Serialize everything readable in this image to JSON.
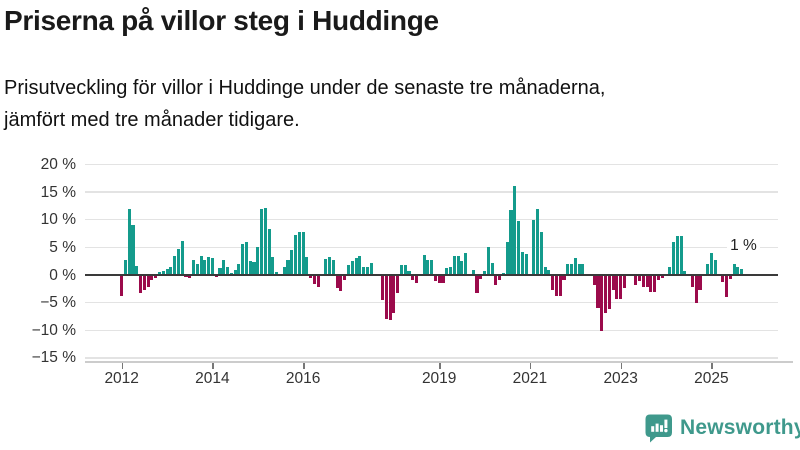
{
  "header": {
    "title": "Priserna på villor steg i Huddinge",
    "subtitle_line1": "Prisutveckling för villor i Huddinge under de senaste tre månaderna,",
    "subtitle_line2": "jämfört med tre månader tidigare."
  },
  "chart_data": {
    "type": "bar",
    "title": "Priserna på villor steg i Huddinge",
    "unit": "%",
    "frequency": "monthly",
    "start_month": "2012-01",
    "end_month": "2025-09",
    "ylim": [
      -15,
      20
    ],
    "grid": true,
    "values": [
      -3.8,
      2.8,
      12,
      9,
      1.6,
      -3.3,
      -2.7,
      -2.2,
      -0.9,
      -0.6,
      0.5,
      0.7,
      1.1,
      1.5,
      3.4,
      4.7,
      6.1,
      -0.3,
      -0.6,
      2.7,
      1.9,
      3.5,
      2.7,
      3.2,
      3.1,
      -0.4,
      1.2,
      2.8,
      1.5,
      0.3,
      0.9,
      2,
      5.6,
      5.9,
      2.6,
      2.3,
      5,
      11.9,
      12.2,
      8.4,
      3.3,
      0.6,
      0,
      1.5,
      2.7,
      4.5,
      7.2,
      7.8,
      7.7,
      3.2,
      -0.6,
      -1.6,
      -2.1,
      0,
      2.9,
      3.2,
      2.8,
      -2.4,
      -2.9,
      -0.9,
      1.8,
      2.6,
      3,
      3.4,
      1.5,
      1.5,
      2.2,
      0,
      0,
      -4.5,
      -8,
      -8.1,
      -6.8,
      -3.3,
      1.8,
      1.8,
      0.8,
      -0.9,
      -1.5,
      0,
      3.6,
      2.7,
      2.8,
      -1,
      -1.5,
      -1.4,
      1.2,
      1.5,
      3.4,
      3.4,
      2.6,
      3.9,
      0,
      0.9,
      -3.2,
      -0.8,
      0.8,
      5,
      2.1,
      -1.8,
      -0.9,
      0.4,
      5.9,
      11.8,
      16.1,
      9.8,
      4.2,
      3.8,
      0,
      9.9,
      11.9,
      7.8,
      1.5,
      0.9,
      -2.7,
      -3.8,
      -3.8,
      -0.9,
      1.9,
      1.9,
      3,
      1.9,
      1.9,
      0,
      0,
      -1.8,
      -6,
      -10.1,
      -6.8,
      -6.2,
      -2.8,
      -4.4,
      -4.4,
      -2.4,
      0,
      0,
      -1.8,
      -1,
      -2.2,
      -2.2,
      -3,
      -3,
      -0.9,
      -0.6,
      0,
      1.5,
      6,
      7,
      7,
      0.8,
      0,
      -2.2,
      -5,
      -2.7,
      0,
      1.9,
      3.9,
      2.8,
      0,
      -1.2,
      -3.9,
      -0.7,
      1.9,
      1.5,
      1.1
    ],
    "y_ticks": [
      {
        "value": 20,
        "label": "20 %"
      },
      {
        "value": 15,
        "label": "15 %"
      },
      {
        "value": 10,
        "label": "10 %"
      },
      {
        "value": 5,
        "label": "5 %"
      },
      {
        "value": 0,
        "label": "0 %"
      },
      {
        "value": -5,
        "label": "−5 %"
      },
      {
        "value": -10,
        "label": "−10 %"
      },
      {
        "value": -15,
        "label": "−15 %"
      }
    ],
    "x_ticks": [
      {
        "year": 2012,
        "label": "2012"
      },
      {
        "year": 2014,
        "label": "2014"
      },
      {
        "year": 2016,
        "label": "2016"
      },
      {
        "year": 2019,
        "label": "2019"
      },
      {
        "year": 2021,
        "label": "2021"
      },
      {
        "year": 2023,
        "label": "2023"
      },
      {
        "year": 2025,
        "label": "2025"
      }
    ],
    "annotation": {
      "text": "1 %",
      "value": 1
    },
    "colors": {
      "positive": "#149b8c",
      "negative": "#9b0a4b",
      "gridline": "#e3e3e3",
      "zero_line": "#3a3a3a",
      "axis_line": "#cccccc"
    },
    "legend": null
  },
  "footer": {
    "brand": "Newsworthy",
    "brand_color": "#3f998c"
  }
}
